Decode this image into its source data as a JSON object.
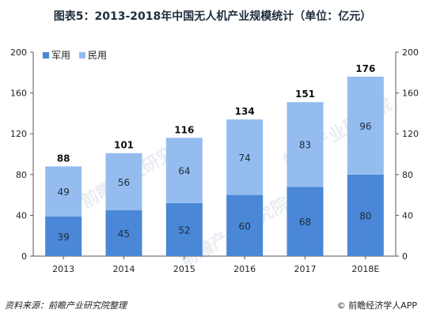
{
  "title": "图表5：2013-2018年中国无人机产业规模统计（单位：亿元）",
  "source": "资料来源：前瞻产业研究院整理",
  "brand": "© 前瞻经济学人APP",
  "watermark": "前瞻产业研究院",
  "colors": {
    "military": "#4a87d6",
    "civil": "#94bcee",
    "axis": "#555555",
    "text": "#222222"
  },
  "chart_data": {
    "type": "bar",
    "stacked": true,
    "categories": [
      "2013",
      "2014",
      "2015",
      "2016",
      "2017",
      "2018E"
    ],
    "series": [
      {
        "name": "军用",
        "values": [
          39,
          45,
          52,
          60,
          68,
          80
        ]
      },
      {
        "name": "民用",
        "values": [
          49,
          56,
          64,
          74,
          83,
          96
        ]
      }
    ],
    "totals": [
      88,
      101,
      116,
      134,
      151,
      176
    ],
    "ylim": [
      0,
      200
    ],
    "yticks": [
      0,
      40,
      80,
      120,
      160,
      200
    ],
    "y_axis_right": true,
    "legend": "top-left",
    "grid": false
  }
}
